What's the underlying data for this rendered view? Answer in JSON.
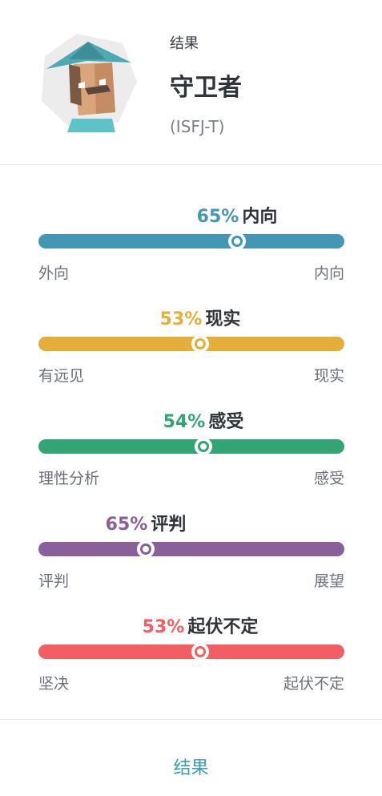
{
  "header": {
    "result_label": "结果",
    "type_name": "守卫者",
    "type_code": "(ISFJ-T)",
    "avatar_icon": "sentinel-avatar-icon"
  },
  "traits": [
    {
      "percent": "65%",
      "name": "内向",
      "left": "外向",
      "right": "内向",
      "value": 0.65,
      "side": "right",
      "color": "#4298b4"
    },
    {
      "percent": "53%",
      "name": "现实",
      "left": "有远见",
      "right": "现实",
      "value": 0.53,
      "side": "right",
      "color": "#e4ae3a"
    },
    {
      "percent": "54%",
      "name": "感受",
      "left": "理性分析",
      "right": "感受",
      "value": 0.54,
      "side": "right",
      "color": "#33a474"
    },
    {
      "percent": "65%",
      "name": "评判",
      "left": "评判",
      "right": "展望",
      "value": 0.65,
      "side": "left",
      "color": "#88619a"
    },
    {
      "percent": "53%",
      "name": "起伏不定",
      "left": "坚决",
      "right": "起伏不定",
      "value": 0.53,
      "side": "right",
      "color": "#f25e62"
    }
  ],
  "footer": {
    "button_label": "结果"
  }
}
